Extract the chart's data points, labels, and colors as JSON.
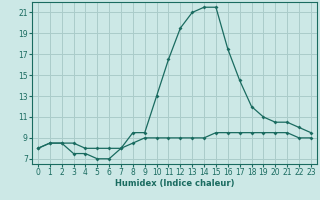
{
  "xlabel": "Humidex (Indice chaleur)",
  "background_color": "#cce8e6",
  "grid_color": "#aaccca",
  "line_color": "#1a6b60",
  "x_hours": [
    0,
    1,
    2,
    3,
    4,
    5,
    6,
    7,
    8,
    9,
    10,
    11,
    12,
    13,
    14,
    15,
    16,
    17,
    18,
    19,
    20,
    21,
    22,
    23
  ],
  "series1": [
    8.0,
    8.5,
    8.5,
    7.5,
    7.5,
    7.0,
    7.0,
    8.0,
    9.5,
    9.5,
    13.0,
    16.5,
    19.5,
    21.0,
    21.5,
    21.5,
    17.5,
    14.5,
    12.0,
    11.0,
    10.5,
    10.5,
    10.0,
    9.5
  ],
  "series2": [
    8.0,
    8.5,
    8.5,
    8.5,
    8.0,
    8.0,
    8.0,
    8.0,
    8.5,
    9.0,
    9.0,
    9.0,
    9.0,
    9.0,
    9.0,
    9.5,
    9.5,
    9.5,
    9.5,
    9.5,
    9.5,
    9.5,
    9.0,
    9.0
  ],
  "ylim": [
    6.5,
    22.0
  ],
  "yticks": [
    7,
    9,
    11,
    13,
    15,
    17,
    19,
    21
  ],
  "xticks": [
    0,
    1,
    2,
    3,
    4,
    5,
    6,
    7,
    8,
    9,
    10,
    11,
    12,
    13,
    14,
    15,
    16,
    17,
    18,
    19,
    20,
    21,
    22,
    23
  ],
  "axis_fontsize": 6.0,
  "tick_fontsize": 5.5
}
